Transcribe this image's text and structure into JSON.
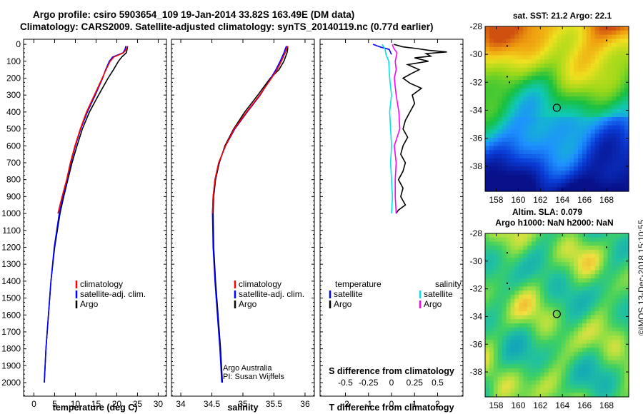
{
  "header": {
    "line1": "Argo profile: csiro 5903654_109 19-Jan-2014 33.82S 163.49E (DM data)",
    "line2": "Climatology: CARS2009. Satellite-adjusted climatology: synTS_20140119.nc (0.77d earlier)"
  },
  "credit": "©IMOS 13-Dec-2018 15:10:55",
  "colors": {
    "climatology": "#ff0000",
    "satellite": "#0000ff",
    "argo": "#000000",
    "sat_salinity": "#00e5e5",
    "argo_salinity": "#ff00ff"
  },
  "chart_data": [
    {
      "type": "line",
      "name": "temperature-profile",
      "xlabel": "temperature (deg C)",
      "ylabel": "",
      "xlim": [
        -2.5,
        32
      ],
      "ylim": [
        2080,
        -30
      ],
      "xticks": [
        0,
        5,
        10,
        15,
        20,
        25,
        30
      ],
      "yticks": [
        0,
        100,
        200,
        300,
        400,
        500,
        600,
        700,
        800,
        900,
        1000,
        1100,
        1200,
        1300,
        1400,
        1500,
        1600,
        1700,
        1800,
        1900,
        2000
      ],
      "legend": {
        "position": "bottom-right",
        "entries": [
          "climatology",
          "satellite-adj. clim.",
          "Argo"
        ]
      },
      "series": [
        {
          "name": "climatology",
          "color": "#ff0000",
          "depth": [
            10,
            30,
            50,
            75,
            100,
            150,
            200,
            300,
            400,
            500,
            600,
            700,
            800,
            900,
            1000
          ],
          "values": [
            22.6,
            22.3,
            21.6,
            19.3,
            18.4,
            17.4,
            16.5,
            14.6,
            12.7,
            11.2,
            9.9,
            8.8,
            7.9,
            6.8,
            5.8
          ]
        },
        {
          "name": "satellite-adj. clim.",
          "color": "#0000ff",
          "depth": [
            10,
            30,
            50,
            75,
            100,
            150,
            200,
            300,
            400,
            500,
            600,
            700,
            800,
            900,
            1000,
            1200,
            1400,
            1600,
            1800,
            2000
          ],
          "values": [
            22.2,
            22.0,
            21.5,
            19.0,
            18.2,
            17.3,
            16.6,
            14.8,
            12.9,
            11.3,
            10.0,
            8.9,
            8.0,
            7.0,
            6.1,
            4.9,
            4.1,
            3.5,
            2.9,
            2.5
          ]
        },
        {
          "name": "Argo",
          "color": "#000000",
          "depth": [
            10,
            30,
            50,
            75,
            100,
            150,
            200,
            300,
            400,
            500,
            600,
            700,
            800,
            900,
            1000,
            1200,
            1400,
            1600,
            1800,
            2000
          ],
          "values": [
            22.6,
            22.5,
            22.3,
            21.2,
            20.4,
            19.2,
            17.9,
            15.6,
            13.4,
            11.7,
            10.4,
            9.2,
            8.2,
            7.2,
            6.3,
            5.0,
            4.1,
            3.5,
            2.9,
            2.5
          ]
        }
      ]
    },
    {
      "type": "line",
      "name": "salinity-profile",
      "xlabel": "salinity",
      "ylabel": "",
      "xlim": [
        33.85,
        36.15
      ],
      "ylim": [
        2080,
        -30
      ],
      "xticks": [
        34,
        34.5,
        35,
        35.5,
        36
      ],
      "legend": {
        "position": "bottom-right",
        "entries": [
          "climatology",
          "satellite-adj. clim.",
          "Argo"
        ]
      },
      "annotation": [
        "Argo Australia",
        "PI: Susan Wijffels"
      ],
      "series": [
        {
          "name": "climatology",
          "color": "#ff0000",
          "depth": [
            10,
            30,
            50,
            100,
            150,
            200,
            300,
            400,
            500,
            600,
            700,
            800,
            900,
            1000
          ],
          "values": [
            35.72,
            35.7,
            35.68,
            35.62,
            35.55,
            35.46,
            35.27,
            35.06,
            34.86,
            34.72,
            34.61,
            34.55,
            34.52,
            34.51
          ]
        },
        {
          "name": "satellite-adj. clim.",
          "color": "#0000ff",
          "depth": [
            10,
            30,
            50,
            100,
            150,
            200,
            300,
            400,
            500,
            600,
            700,
            800,
            900,
            1000,
            1200,
            1400,
            1600,
            1800,
            2000
          ],
          "values": [
            35.7,
            35.68,
            35.66,
            35.6,
            35.53,
            35.45,
            35.28,
            35.07,
            34.87,
            34.72,
            34.61,
            34.55,
            34.52,
            34.51,
            34.52,
            34.55,
            34.59,
            34.63,
            34.66
          ]
        },
        {
          "name": "Argo",
          "color": "#000000",
          "depth": [
            10,
            30,
            50,
            100,
            150,
            200,
            300,
            400,
            500,
            600,
            700,
            800,
            900,
            1000,
            1200,
            1400,
            1600,
            1800,
            2000
          ],
          "values": [
            35.72,
            35.72,
            35.71,
            35.66,
            35.58,
            35.44,
            35.24,
            35.03,
            34.85,
            34.71,
            34.62,
            34.56,
            34.53,
            34.52,
            34.53,
            34.56,
            34.6,
            34.64,
            34.67
          ]
        }
      ]
    },
    {
      "type": "line",
      "name": "difference-profile",
      "xlabel": "T difference from climatology",
      "xlabel_top": "S difference from climatology",
      "ylabel": "",
      "xlim": [
        -3.1,
        3.1
      ],
      "ylim": [
        2080,
        -30
      ],
      "xticks": [
        -2,
        -1,
        0,
        1,
        2
      ],
      "xticks_top": [
        "-0.5",
        "-0.25",
        "0",
        "0.25",
        "0.5"
      ],
      "legend": {
        "position": "bottom",
        "temperature_heading": "temperature",
        "salinity_heading": "salinity",
        "entries": [
          "satellite",
          "Argo",
          "satellite",
          "Argo"
        ]
      },
      "series": [
        {
          "name": "temperature satellite",
          "color": "#0000ff",
          "depth": [
            0,
            15,
            30,
            45,
            60
          ],
          "values": [
            -0.8,
            -0.5,
            -0.1,
            -0.05,
            0.0
          ]
        },
        {
          "name": "temperature Argo",
          "color": "#000000",
          "depth": [
            0,
            15,
            25,
            35,
            45,
            55,
            70,
            80,
            100,
            120,
            150,
            170,
            200,
            230,
            260,
            300,
            350,
            400,
            450,
            500,
            550,
            600,
            650,
            700,
            750,
            800,
            850,
            900,
            950,
            980,
            1000
          ],
          "values": [
            0.1,
            0.5,
            1.1,
            1.6,
            2.4,
            1.5,
            1.7,
            1.0,
            1.6,
            0.7,
            1.2,
            0.9,
            0.5,
            0.8,
            1.3,
            0.9,
            1.0,
            0.8,
            0.6,
            0.5,
            0.7,
            0.5,
            0.4,
            0.6,
            0.5,
            0.3,
            0.5,
            0.4,
            0.6,
            0.3,
            0.2
          ]
        },
        {
          "name": "salinity satellite",
          "color": "#00e5e5",
          "depth": [
            0,
            30,
            60,
            100,
            200,
            300,
            400,
            500,
            600,
            700,
            800,
            900,
            1000
          ],
          "values": [
            -0.1,
            -0.07,
            -0.06,
            -0.03,
            -0.02,
            0.0,
            -0.02,
            -0.01,
            0.0,
            -0.01,
            0.0,
            0.01,
            0.0
          ]
        },
        {
          "name": "salinity Argo",
          "color": "#ff00ff",
          "depth": [
            0,
            20,
            50,
            100,
            150,
            200,
            300,
            400,
            500,
            600,
            700,
            800,
            900,
            1000
          ],
          "values": [
            0.01,
            0.02,
            0.06,
            0.04,
            0.05,
            0.03,
            0.05,
            0.08,
            0.09,
            0.03,
            0.05,
            0.04,
            0.04,
            0.05
          ]
        }
      ]
    },
    {
      "type": "heatmap",
      "name": "sst-map",
      "title": "sat. SST: 21.2 Argo: 22.1",
      "xlim": [
        157,
        170
      ],
      "ylim": [
        -39.8,
        -28
      ],
      "xticks": [
        158,
        160,
        162,
        164,
        166,
        168
      ],
      "yticks": [
        -28,
        -30,
        -32,
        -34,
        -36,
        -38
      ],
      "marker": {
        "lon": 163.49,
        "lat": -33.82
      }
    },
    {
      "type": "heatmap",
      "name": "sla-map",
      "title_line1": "Altim. SLA: 0.079",
      "title_line2": "Argo h1000: NaN h2000: NaN",
      "xlim": [
        157,
        170
      ],
      "ylim": [
        -39.8,
        -28
      ],
      "xticks": [
        158,
        160,
        162,
        164,
        166,
        168
      ],
      "yticks": [
        -28,
        -30,
        -32,
        -34,
        -36,
        -38
      ],
      "marker": {
        "lon": 163.49,
        "lat": -33.82
      }
    }
  ]
}
